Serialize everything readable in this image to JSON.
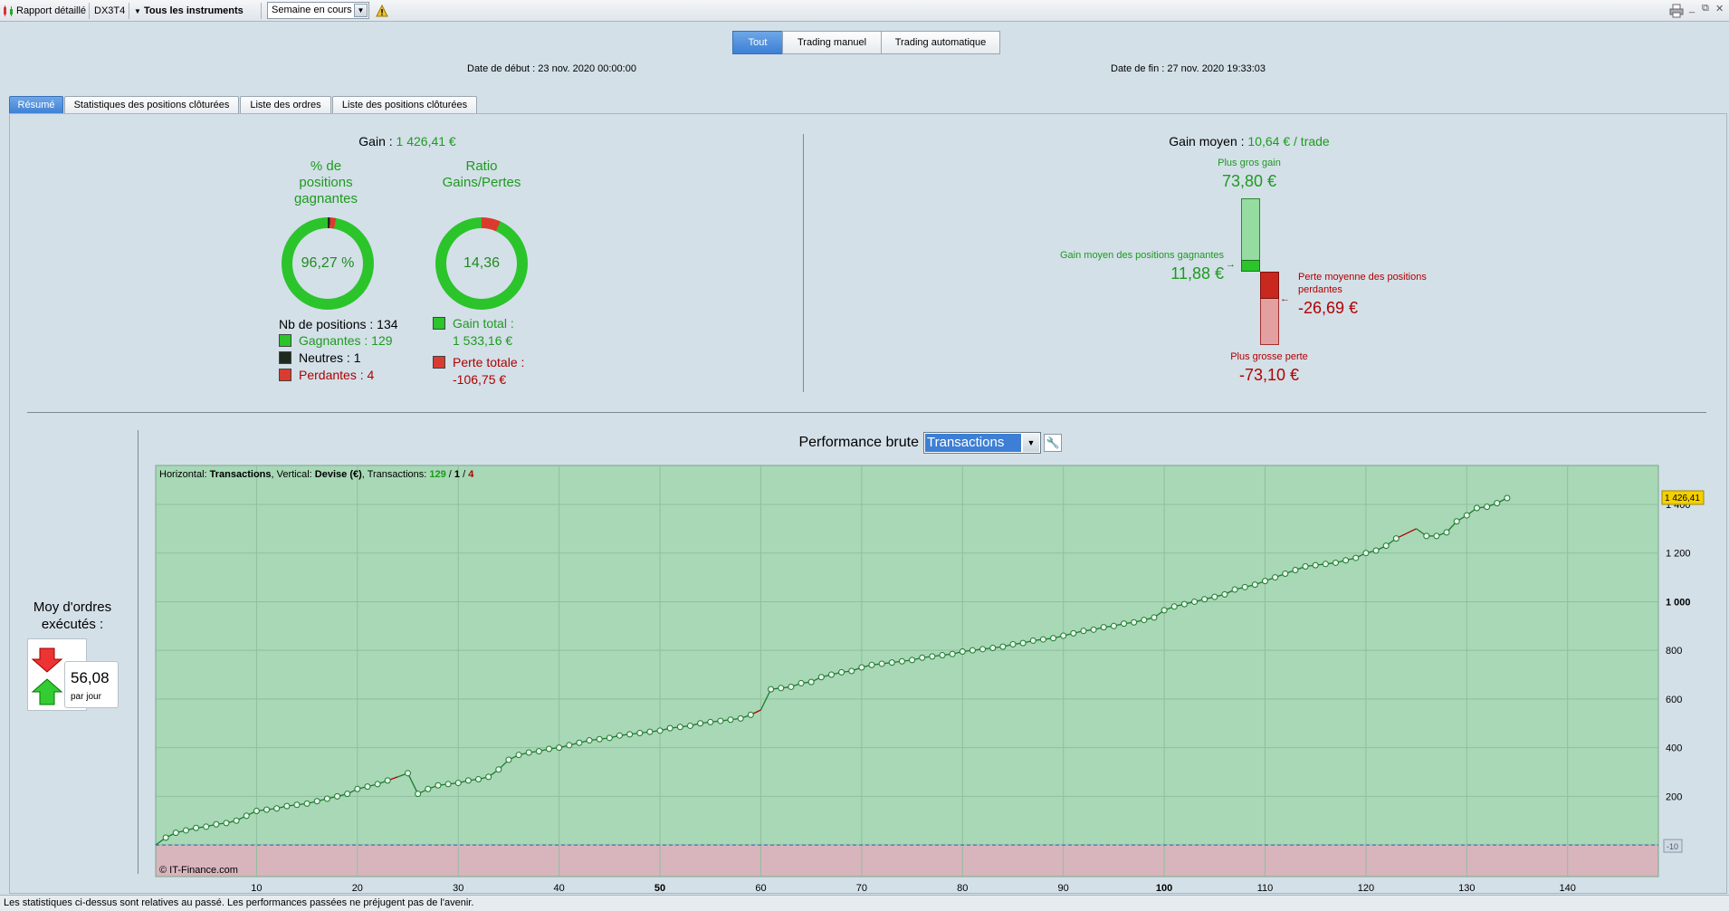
{
  "toolbar": {
    "report_label": "Rapport détaillé",
    "instrument_code": "DX3T4",
    "instruments_label": "Tous les instruments",
    "period_value": "Semaine en cours"
  },
  "filter": {
    "buttons": [
      "Tout",
      "Trading manuel",
      "Trading automatique"
    ],
    "start_date": "Date de début :  23 nov. 2020 00:00:00",
    "end_date": "Date de fin :  27 nov. 2020 19:33:03"
  },
  "tabs": [
    "Résumé",
    "Statistiques des positions clôturées",
    "Liste des ordres",
    "Liste des positions clôturées"
  ],
  "summary": {
    "gain_label": "Gain :",
    "gain_value": "1 426,41 €",
    "pct_title_lines": [
      "% de",
      "positions",
      "gagnantes"
    ],
    "pct_value": "96,27 %",
    "pct_fraction": 0.9627,
    "ratio_title_lines": [
      "Ratio",
      "Gains/Pertes"
    ],
    "ratio_value": "14,36",
    "nb_positions": "Nb de positions : 134",
    "winning": "Gagnantes : 129",
    "neutral": "Neutres : 1",
    "losing": "Perdantes : 4",
    "total_gain_label": "Gain total :",
    "total_gain_value": "1 533,16 €",
    "total_loss_label": "Perte totale :",
    "total_loss_value": "-106,75 €"
  },
  "avg": {
    "label": "Gain moyen :",
    "value": "10,64 € / trade",
    "max_gain_label": "Plus gros gain",
    "max_gain_value": "73,80 €",
    "avg_win_label": "Gain moyen des positions gagnantes",
    "avg_win_value": "11,88 €",
    "avg_loss_label_lines": [
      "Perte moyenne des positions",
      "perdantes"
    ],
    "avg_loss_value": "-26,69 €",
    "max_loss_label": "Plus grosse perte",
    "max_loss_value": "-73,10 €"
  },
  "orders": {
    "title_lines": [
      "Moy d'ordres",
      "exécutés :"
    ],
    "value": "56,08",
    "unit": "par jour"
  },
  "performance": {
    "label": "Performance brute",
    "select_value": "Transactions"
  },
  "chart_info": {
    "h_label": "Horizontal: ",
    "h_value": "Transactions",
    "v_label": ", Vertical: ",
    "v_value": "Devise (€)",
    "t_label": ", Transactions: ",
    "t_win": "129",
    "t_sep1": " / ",
    "t_neutral": "1",
    "t_sep2": " / ",
    "t_loss": "4",
    "copyright": "© IT-Finance.com",
    "last_value_label": "1 426,41",
    "zero_label": "-10"
  },
  "status": {
    "text": "Les statistiques ci-dessus sont relatives au passé. Les performances passées ne préjugent pas de l'avenir."
  },
  "colors": {
    "gain_green": "#1e9a1e",
    "loss_red": "#b00000",
    "chart_green_bg": "#a8d8b6",
    "chart_red_bg": "#d8b4bc"
  },
  "chart_data": {
    "type": "line",
    "xlabel": "",
    "ylabel": "",
    "xlim": [
      0,
      149
    ],
    "ylim": [
      -130,
      1560
    ],
    "x_ticks": [
      10,
      20,
      30,
      40,
      50,
      60,
      70,
      80,
      90,
      100,
      110,
      120,
      130,
      140
    ],
    "y_ticks": [
      "200",
      "400",
      "600",
      "800",
      "1 000",
      "1 200",
      "1 400"
    ],
    "y_tick_values": [
      200,
      400,
      600,
      800,
      1000,
      1200,
      1400
    ],
    "series": [
      {
        "name": "",
        "x": [
          0,
          1,
          2,
          3,
          4,
          5,
          6,
          7,
          8,
          9,
          10,
          11,
          12,
          13,
          14,
          15,
          16,
          17,
          18,
          19,
          20,
          21,
          22,
          23,
          24,
          25,
          26,
          27,
          28,
          29,
          30,
          31,
          32,
          33,
          34,
          35,
          36,
          37,
          38,
          39,
          40,
          41,
          42,
          43,
          44,
          45,
          46,
          47,
          48,
          49,
          50,
          51,
          52,
          53,
          54,
          55,
          56,
          57,
          58,
          59,
          60,
          61,
          62,
          63,
          64,
          65,
          66,
          67,
          68,
          69,
          70,
          71,
          72,
          73,
          74,
          75,
          76,
          77,
          78,
          79,
          80,
          81,
          82,
          83,
          84,
          85,
          86,
          87,
          88,
          89,
          90,
          91,
          92,
          93,
          94,
          95,
          96,
          97,
          98,
          99,
          100,
          101,
          102,
          103,
          104,
          105,
          106,
          107,
          108,
          109,
          110,
          111,
          112,
          113,
          114,
          115,
          116,
          117,
          118,
          119,
          120,
          121,
          122,
          123,
          124,
          125,
          126,
          127,
          128,
          129,
          130,
          131,
          132,
          133,
          134
        ],
        "values": [
          0,
          30,
          50,
          60,
          70,
          75,
          85,
          90,
          100,
          120,
          140,
          145,
          150,
          160,
          165,
          170,
          180,
          190,
          200,
          210,
          230,
          240,
          250,
          265,
          280,
          295,
          210,
          230,
          245,
          250,
          255,
          265,
          270,
          280,
          310,
          350,
          370,
          380,
          385,
          395,
          400,
          410,
          420,
          430,
          435,
          440,
          450,
          455,
          460,
          465,
          470,
          480,
          485,
          490,
          500,
          505,
          510,
          515,
          520,
          535,
          555,
          640,
          645,
          650,
          665,
          670,
          690,
          700,
          710,
          715,
          730,
          740,
          745,
          750,
          755,
          760,
          770,
          775,
          780,
          785,
          795,
          800,
          805,
          810,
          815,
          825,
          830,
          840,
          845,
          850,
          860,
          870,
          880,
          885,
          895,
          900,
          910,
          915,
          925,
          935,
          965,
          980,
          990,
          1000,
          1010,
          1020,
          1030,
          1050,
          1060,
          1070,
          1085,
          1100,
          1115,
          1130,
          1145,
          1150,
          1155,
          1160,
          1170,
          1180,
          1200,
          1210,
          1230,
          1260,
          1280,
          1300,
          1270,
          1270,
          1285,
          1330,
          1355,
          1385,
          1390,
          1405,
          1426
        ]
      }
    ],
    "loss_segments_x": [
      [
        23,
        24
      ],
      [
        59,
        60
      ],
      [
        123,
        125
      ]
    ]
  }
}
